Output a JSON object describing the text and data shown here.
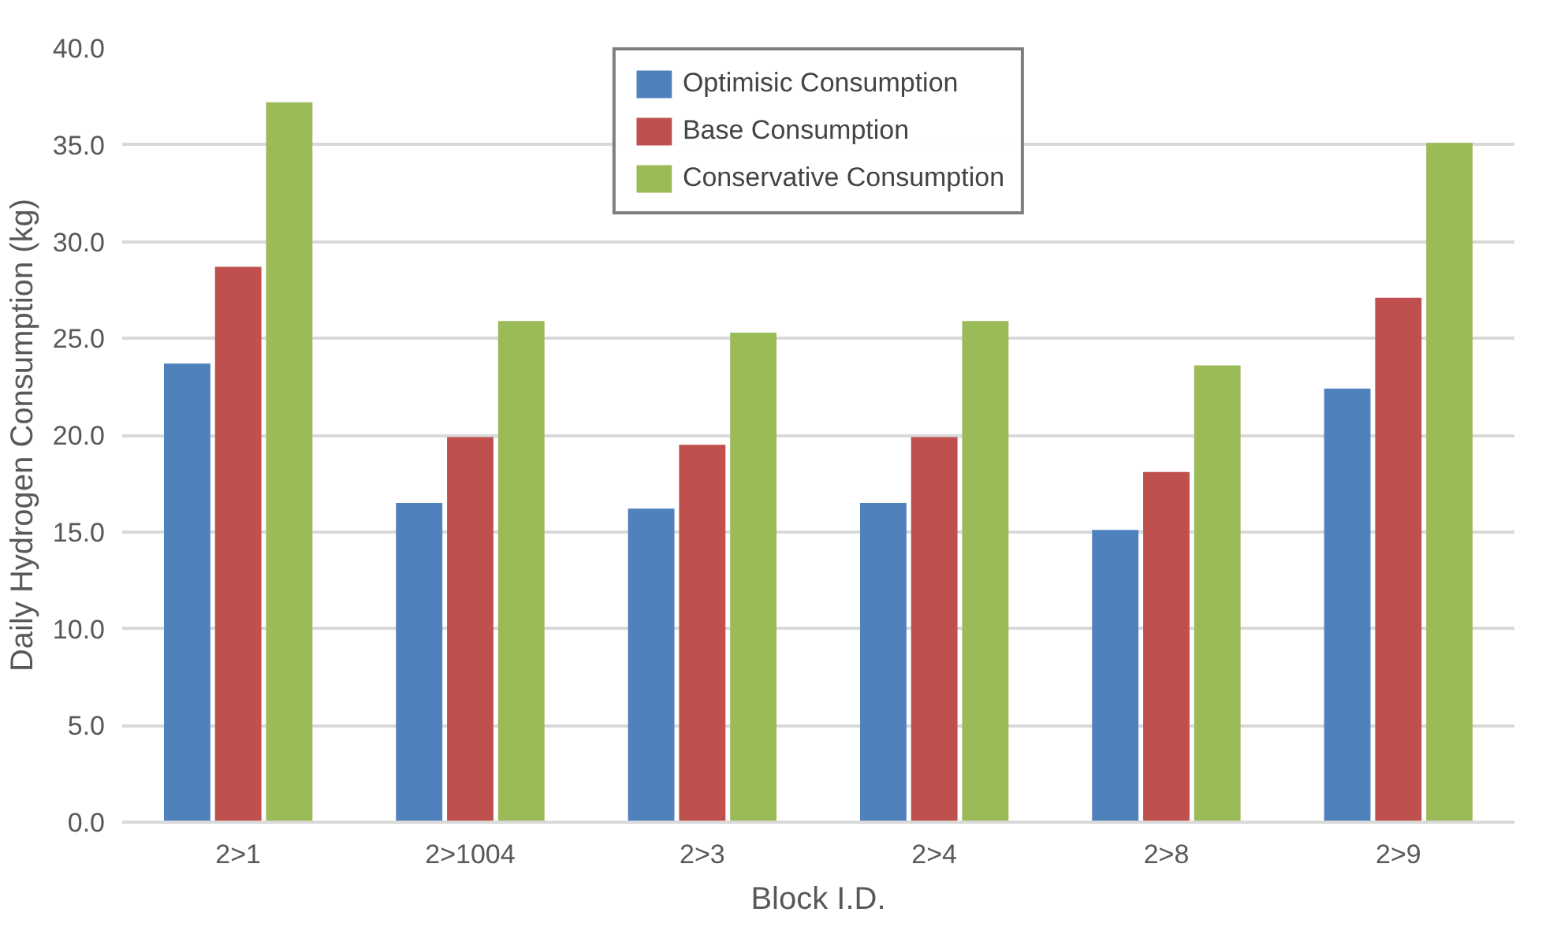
{
  "chart_data": {
    "type": "bar",
    "xlabel": "Block I.D.",
    "ylabel": "Daily Hydrogen Consumption (kg)",
    "categories": [
      "2>1",
      "2>1004",
      "2>3",
      "2>4",
      "2>8",
      "2>9"
    ],
    "series": [
      {
        "name": "Optimisic Consumption",
        "color": "#4f81bd",
        "values": [
          23.7,
          16.5,
          16.2,
          16.5,
          15.1,
          22.4
        ]
      },
      {
        "name": "Base Consumption",
        "color": "#c0504d",
        "values": [
          28.7,
          19.9,
          19.5,
          19.9,
          18.1,
          27.1
        ]
      },
      {
        "name": "Conservative Consumption",
        "color": "#9bbb59",
        "values": [
          37.2,
          25.9,
          25.3,
          25.9,
          23.6,
          35.1
        ]
      }
    ],
    "ylim": [
      0,
      40
    ],
    "yticks": [
      {
        "value": 0,
        "label": "0.0"
      },
      {
        "value": 5,
        "label": "5.0"
      },
      {
        "value": 10,
        "label": "10.0"
      },
      {
        "value": 15,
        "label": "15.0"
      },
      {
        "value": 20,
        "label": "20.0"
      },
      {
        "value": 25,
        "label": "25.0"
      },
      {
        "value": 30,
        "label": "30.0"
      },
      {
        "value": 35,
        "label": "35.0"
      },
      {
        "value": 40,
        "label": "40.0"
      }
    ],
    "grid": "y",
    "legend": "top"
  }
}
